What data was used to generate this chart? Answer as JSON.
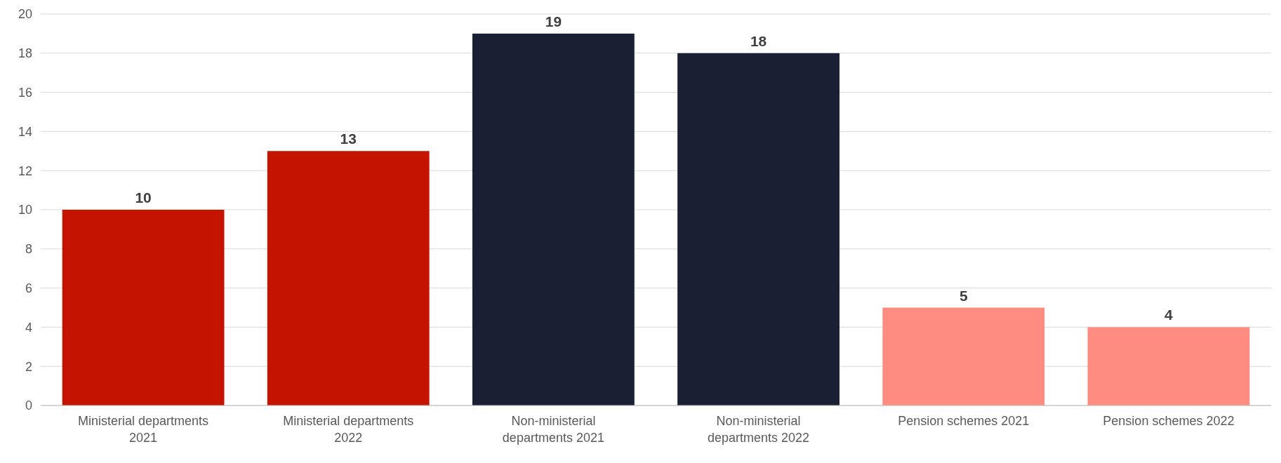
{
  "chart_data": {
    "type": "bar",
    "categories": [
      "Ministerial departments 2021",
      "Ministerial departments 2022",
      "Non-ministerial departments 2021",
      "Non-ministerial departments 2022",
      "Pension schemes 2021",
      "Pension schemes 2022"
    ],
    "values": [
      10,
      13,
      19,
      18,
      5,
      4
    ],
    "colors": [
      "#c41400",
      "#c41400",
      "#1b1f33",
      "#1b1f33",
      "#ff8c80",
      "#ff8c80"
    ],
    "ylim": [
      0,
      20
    ],
    "yticks": [
      0,
      2,
      4,
      6,
      8,
      10,
      12,
      14,
      16,
      18,
      20
    ],
    "grid": "y",
    "data_labels": true
  }
}
